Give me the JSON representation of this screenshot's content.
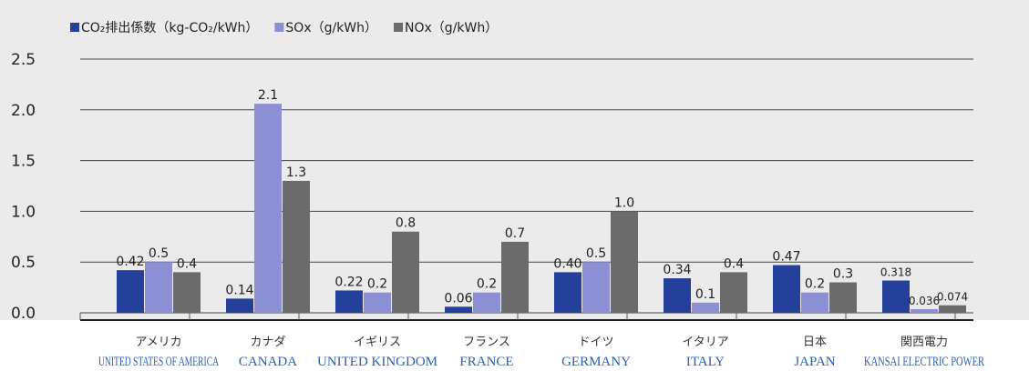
{
  "chart_data": {
    "type": "bar",
    "title": "",
    "xlabel": "",
    "ylabel": "",
    "ylim": [
      0,
      2.5
    ],
    "yticks": [
      "0.0",
      "0.5",
      "1.0",
      "1.5",
      "2.0",
      "2.5"
    ],
    "grid": true,
    "legend_position": "top-left",
    "categories": [
      {
        "jp": "アメリカ",
        "en": "UNITED STATES OF AMERICA"
      },
      {
        "jp": "カナダ",
        "en": "CANADA"
      },
      {
        "jp": "イギリス",
        "en": "UNITED KINGDOM"
      },
      {
        "jp": "フランス",
        "en": "FRANCE"
      },
      {
        "jp": "ドイツ",
        "en": "GERMANY"
      },
      {
        "jp": "イタリア",
        "en": "ITALY"
      },
      {
        "jp": "日本",
        "en": "JAPAN"
      },
      {
        "jp": "関西電力",
        "en": "KANSAI ELECTRIC POWER"
      }
    ],
    "series": [
      {
        "name": "CO₂排出係数（kg-CO₂/kWh）",
        "color": "#24409a",
        "values": [
          0.42,
          0.14,
          0.22,
          0.06,
          0.4,
          0.34,
          0.47,
          0.318
        ],
        "labels": [
          "0.42",
          "0.14",
          "0.22",
          "0.06",
          "0.40",
          "0.34",
          "0.47",
          "0.318"
        ]
      },
      {
        "name": "SOx（g/kWh）",
        "color": "#8c8fd3",
        "values": [
          0.5,
          2.06,
          0.2,
          0.2,
          0.5,
          0.1,
          0.2,
          0.036
        ],
        "labels": [
          "0.5",
          "2.1",
          "0.2",
          "0.2",
          "0.5",
          "0.1",
          "0.2",
          "0.036"
        ]
      },
      {
        "name": "NOx（g/kWh）",
        "color": "#6b6b6b",
        "values": [
          0.4,
          1.3,
          0.8,
          0.7,
          1.0,
          0.4,
          0.3,
          0.074
        ],
        "labels": [
          "0.4",
          "1.3",
          "0.8",
          "0.7",
          "1.0",
          "0.4",
          "0.3",
          "0.074"
        ]
      }
    ]
  }
}
